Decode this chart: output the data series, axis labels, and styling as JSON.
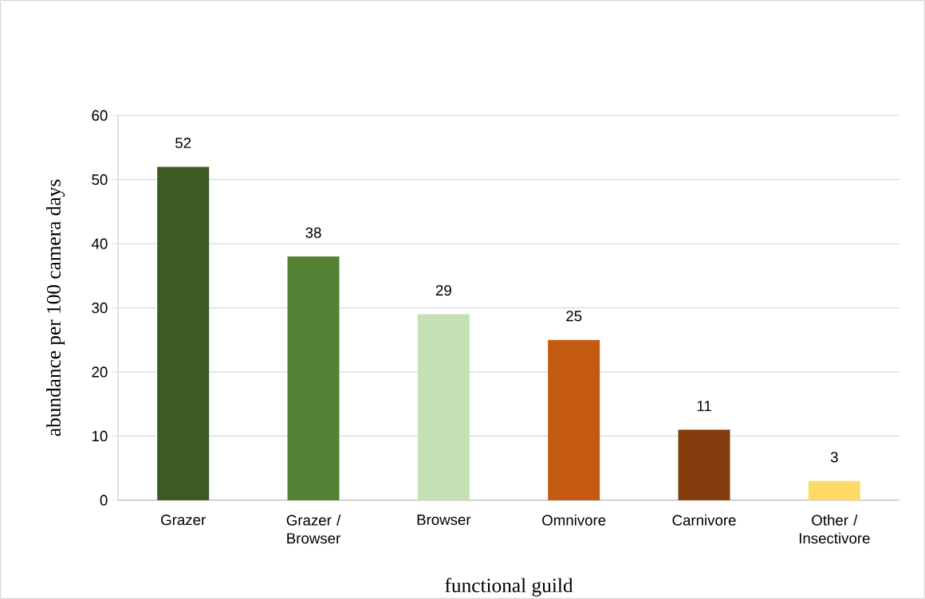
{
  "chart_data": {
    "type": "bar",
    "xlabel": "functional guild",
    "ylabel": "abundance per 100 camera days",
    "categories": [
      "Grazer",
      "Grazer / Browser",
      "Browser",
      "Omnivore",
      "Carnivore",
      "Other / Insectivore"
    ],
    "values": [
      52,
      38,
      29,
      25,
      11,
      3
    ],
    "colors": [
      "#3b5a24",
      "#548235",
      "#c5e0b4",
      "#c55a11",
      "#843c0c",
      "#ffd966"
    ],
    "ylim": [
      0,
      60
    ],
    "yticks": [
      0,
      10,
      20,
      30,
      40,
      50,
      60
    ],
    "grid": "y",
    "data_labels": true
  }
}
